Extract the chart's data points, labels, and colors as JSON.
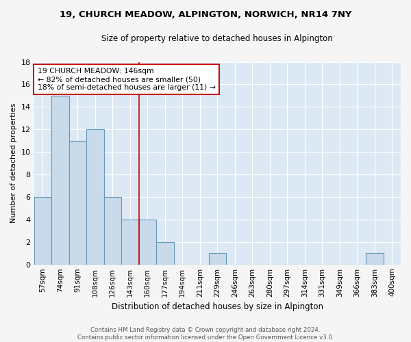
{
  "title": "19, CHURCH MEADOW, ALPINGTON, NORWICH, NR14 7NY",
  "subtitle": "Size of property relative to detached houses in Alpington",
  "xlabel": "Distribution of detached houses by size in Alpington",
  "ylabel": "Number of detached properties",
  "categories": [
    "57sqm",
    "74sqm",
    "91sqm",
    "108sqm",
    "126sqm",
    "143sqm",
    "160sqm",
    "177sqm",
    "194sqm",
    "211sqm",
    "229sqm",
    "246sqm",
    "263sqm",
    "280sqm",
    "297sqm",
    "314sqm",
    "331sqm",
    "349sqm",
    "366sqm",
    "383sqm",
    "400sqm"
  ],
  "values": [
    6,
    15,
    11,
    12,
    6,
    4,
    4,
    2,
    0,
    0,
    1,
    0,
    0,
    0,
    0,
    0,
    0,
    0,
    0,
    1,
    0
  ],
  "bar_color": "#c9daea",
  "bar_edge_color": "#6699bb",
  "background_color": "#dce9f5",
  "property_line_x": 5.5,
  "annotation_text": "19 CHURCH MEADOW: 146sqm\n← 82% of detached houses are smaller (50)\n18% of semi-detached houses are larger (11) →",
  "annotation_box_color": "#ffffff",
  "annotation_box_edge_color": "#cc0000",
  "red_line_color": "#cc0000",
  "ylim": [
    0,
    18
  ],
  "yticks": [
    0,
    2,
    4,
    6,
    8,
    10,
    12,
    14,
    16,
    18
  ],
  "footer_text": "Contains HM Land Registry data © Crown copyright and database right 2024.\nContains public sector information licensed under the Open Government Licence v3.0."
}
